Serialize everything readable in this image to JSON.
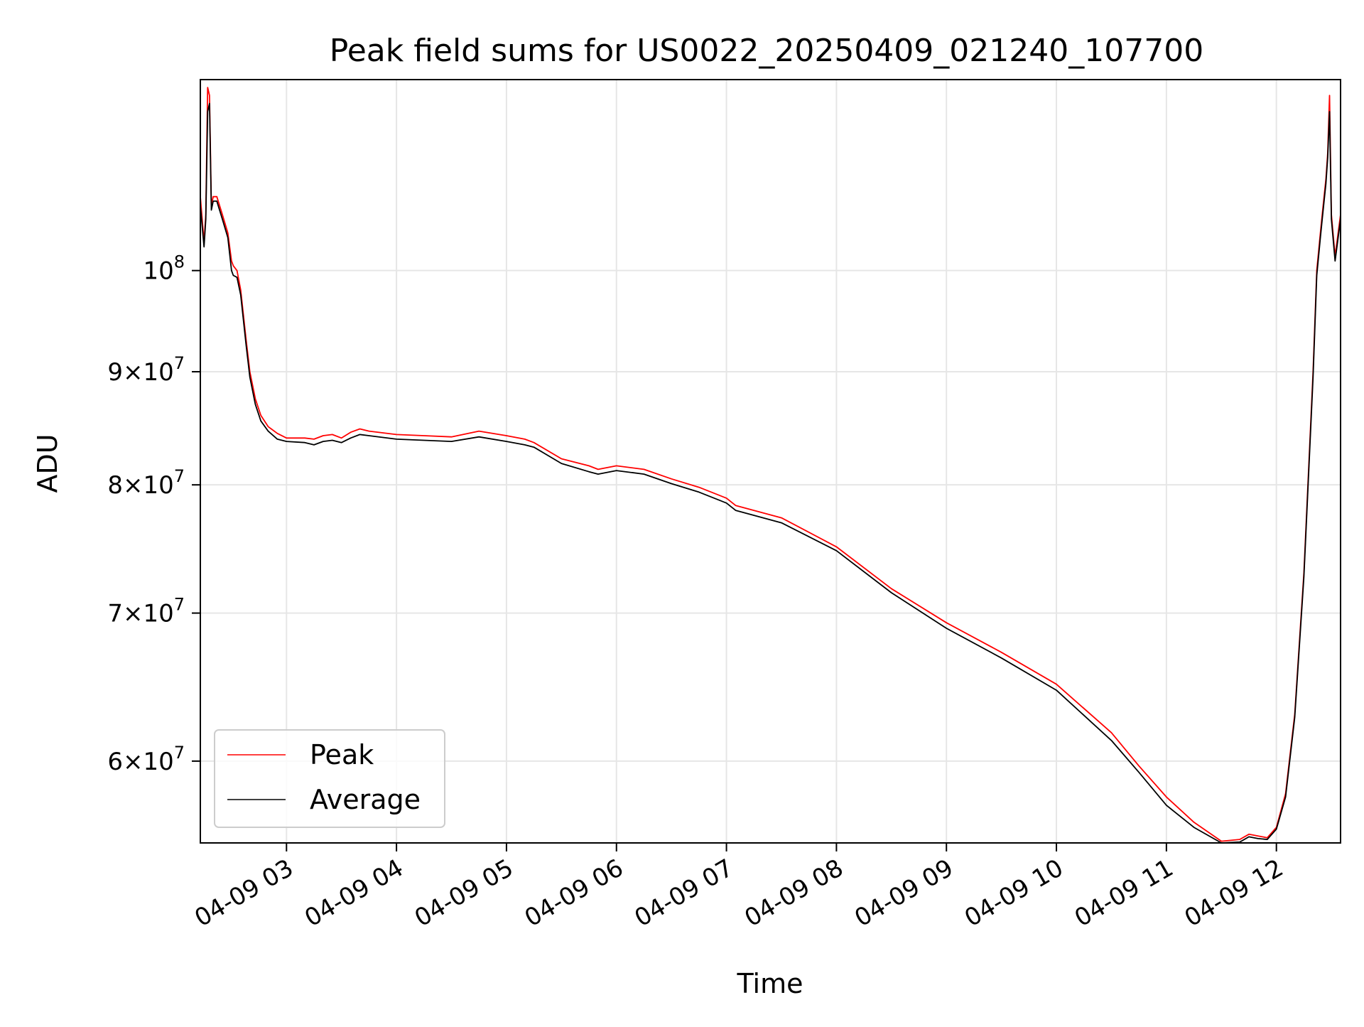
{
  "chart_data": {
    "type": "line",
    "title": "Peak field sums for US0022_20250409_021240_107700",
    "xlabel": "Time",
    "ylabel": "ADU",
    "y_scale": "log",
    "grid": true,
    "legend_placement": "lower-left",
    "xlim": [
      "04-09 02:13",
      "04-09 12:35"
    ],
    "ylim": [
      55100000,
      122000000
    ],
    "x_ticks": [
      {
        "t": "04-09 03:00",
        "label": "04-09 03"
      },
      {
        "t": "04-09 04:00",
        "label": "04-09 04"
      },
      {
        "t": "04-09 05:00",
        "label": "04-09 05"
      },
      {
        "t": "04-09 06:00",
        "label": "04-09 06"
      },
      {
        "t": "04-09 07:00",
        "label": "04-09 07"
      },
      {
        "t": "04-09 08:00",
        "label": "04-09 08"
      },
      {
        "t": "04-09 09:00",
        "label": "04-09 09"
      },
      {
        "t": "04-09 10:00",
        "label": "04-09 10"
      },
      {
        "t": "04-09 11:00",
        "label": "04-09 11"
      },
      {
        "t": "04-09 12:00",
        "label": "04-09 12"
      }
    ],
    "y_ticks": [
      {
        "v": 60000000,
        "mant": "6",
        "exp": "7"
      },
      {
        "v": 70000000,
        "mant": "7",
        "exp": "7"
      },
      {
        "v": 80000000,
        "mant": "8",
        "exp": "7"
      },
      {
        "v": 90000000,
        "mant": "9",
        "exp": "7"
      },
      {
        "v": 100000000,
        "mant": "",
        "exp": "8"
      }
    ],
    "series": [
      {
        "name": "Peak",
        "color": "#ff0000",
        "x": [
          "04-09 02:13",
          "04-09 02:15",
          "04-09 02:16",
          "04-09 02:17",
          "04-09 02:18",
          "04-09 02:19",
          "04-09 02:20",
          "04-09 02:22",
          "04-09 02:25",
          "04-09 02:28",
          "04-09 02:30",
          "04-09 02:31",
          "04-09 02:33",
          "04-09 02:35",
          "04-09 02:38",
          "04-09 02:40",
          "04-09 02:43",
          "04-09 02:46",
          "04-09 02:50",
          "04-09 02:55",
          "04-09 03:00",
          "04-09 03:10",
          "04-09 03:15",
          "04-09 03:20",
          "04-09 03:25",
          "04-09 03:30",
          "04-09 03:35",
          "04-09 03:40",
          "04-09 03:45",
          "04-09 04:00",
          "04-09 04:15",
          "04-09 04:30",
          "04-09 04:45",
          "04-09 05:00",
          "04-09 05:10",
          "04-09 05:15",
          "04-09 05:30",
          "04-09 05:45",
          "04-09 05:50",
          "04-09 06:00",
          "04-09 06:15",
          "04-09 06:30",
          "04-09 06:45",
          "04-09 07:00",
          "04-09 07:05",
          "04-09 07:30",
          "04-09 08:00",
          "04-09 08:30",
          "04-09 09:00",
          "04-09 09:30",
          "04-09 10:00",
          "04-09 10:30",
          "04-09 10:45",
          "04-09 11:00",
          "04-09 11:15",
          "04-09 11:30",
          "04-09 11:40",
          "04-09 11:45",
          "04-09 11:50",
          "04-09 11:55",
          "04-09 12:00",
          "04-09 12:05",
          "04-09 12:10",
          "04-09 12:15",
          "04-09 12:20",
          "04-09 12:22",
          "04-09 12:24",
          "04-09 12:25",
          "04-09 12:26",
          "04-09 12:27",
          "04-09 12:28",
          "04-09 12:29",
          "04-09 12:30",
          "04-09 12:32",
          "04-09 12:35"
        ],
        "values": [
          108000000,
          103000000,
          106000000,
          121000000,
          120000000,
          107000000,
          108000000,
          108000000,
          106000000,
          104000000,
          101000000,
          100500000,
          100000000,
          98000000,
          93000000,
          90000000,
          87500000,
          86000000,
          85000000,
          84400000,
          84000000,
          84000000,
          83900000,
          84200000,
          84300000,
          84000000,
          84500000,
          84800000,
          84600000,
          84300000,
          84200000,
          84100000,
          84600000,
          84200000,
          83900000,
          83600000,
          82200000,
          81600000,
          81300000,
          81600000,
          81300000,
          80500000,
          79800000,
          78900000,
          78300000,
          77300000,
          75000000,
          71800000,
          69300000,
          67200000,
          65000000,
          61800000,
          59700000,
          57800000,
          56300000,
          55200000,
          55300000,
          55600000,
          55500000,
          55400000,
          56000000,
          58000000,
          63000000,
          73000000,
          90000000,
          100000000,
          104000000,
          106000000,
          108000000,
          110000000,
          113000000,
          120000000,
          106000000,
          101500000,
          106000000
        ]
      },
      {
        "name": "Average",
        "color": "#000000",
        "x": [
          "04-09 02:13",
          "04-09 02:15",
          "04-09 02:16",
          "04-09 02:17",
          "04-09 02:18",
          "04-09 02:19",
          "04-09 02:20",
          "04-09 02:22",
          "04-09 02:25",
          "04-09 02:28",
          "04-09 02:30",
          "04-09 02:31",
          "04-09 02:33",
          "04-09 02:35",
          "04-09 02:38",
          "04-09 02:40",
          "04-09 02:43",
          "04-09 02:46",
          "04-09 02:50",
          "04-09 02:55",
          "04-09 03:00",
          "04-09 03:10",
          "04-09 03:15",
          "04-09 03:20",
          "04-09 03:25",
          "04-09 03:30",
          "04-09 03:35",
          "04-09 03:40",
          "04-09 03:45",
          "04-09 04:00",
          "04-09 04:15",
          "04-09 04:30",
          "04-09 04:45",
          "04-09 05:00",
          "04-09 05:10",
          "04-09 05:15",
          "04-09 05:30",
          "04-09 05:45",
          "04-09 05:50",
          "04-09 06:00",
          "04-09 06:15",
          "04-09 06:30",
          "04-09 06:45",
          "04-09 07:00",
          "04-09 07:05",
          "04-09 07:30",
          "04-09 08:00",
          "04-09 08:30",
          "04-09 09:00",
          "04-09 09:30",
          "04-09 10:00",
          "04-09 10:30",
          "04-09 10:45",
          "04-09 11:00",
          "04-09 11:15",
          "04-09 11:30",
          "04-09 11:40",
          "04-09 11:45",
          "04-09 11:50",
          "04-09 11:55",
          "04-09 12:00",
          "04-09 12:05",
          "04-09 12:10",
          "04-09 12:15",
          "04-09 12:20",
          "04-09 12:22",
          "04-09 12:24",
          "04-09 12:25",
          "04-09 12:26",
          "04-09 12:27",
          "04-09 12:28",
          "04-09 12:29",
          "04-09 12:30",
          "04-09 12:32",
          "04-09 12:35"
        ],
        "values": [
          107000000,
          102500000,
          105500000,
          118000000,
          119000000,
          106500000,
          107500000,
          107500000,
          105500000,
          103500000,
          100000000,
          99500000,
          99300000,
          97500000,
          92500000,
          89500000,
          87000000,
          85500000,
          84600000,
          83900000,
          83700000,
          83600000,
          83400000,
          83700000,
          83800000,
          83600000,
          84000000,
          84300000,
          84200000,
          83900000,
          83800000,
          83700000,
          84100000,
          83700000,
          83400000,
          83200000,
          81800000,
          81100000,
          80900000,
          81200000,
          80900000,
          80100000,
          79400000,
          78500000,
          77900000,
          76900000,
          74700000,
          71500000,
          68900000,
          66800000,
          64600000,
          61300000,
          59300000,
          57300000,
          56000000,
          55100000,
          55150000,
          55450000,
          55350000,
          55300000,
          55900000,
          57800000,
          62800000,
          72700000,
          89500000,
          99500000,
          103500000,
          105500000,
          107500000,
          109500000,
          112500000,
          118000000,
          105500000,
          101000000,
          105500000
        ]
      }
    ]
  }
}
